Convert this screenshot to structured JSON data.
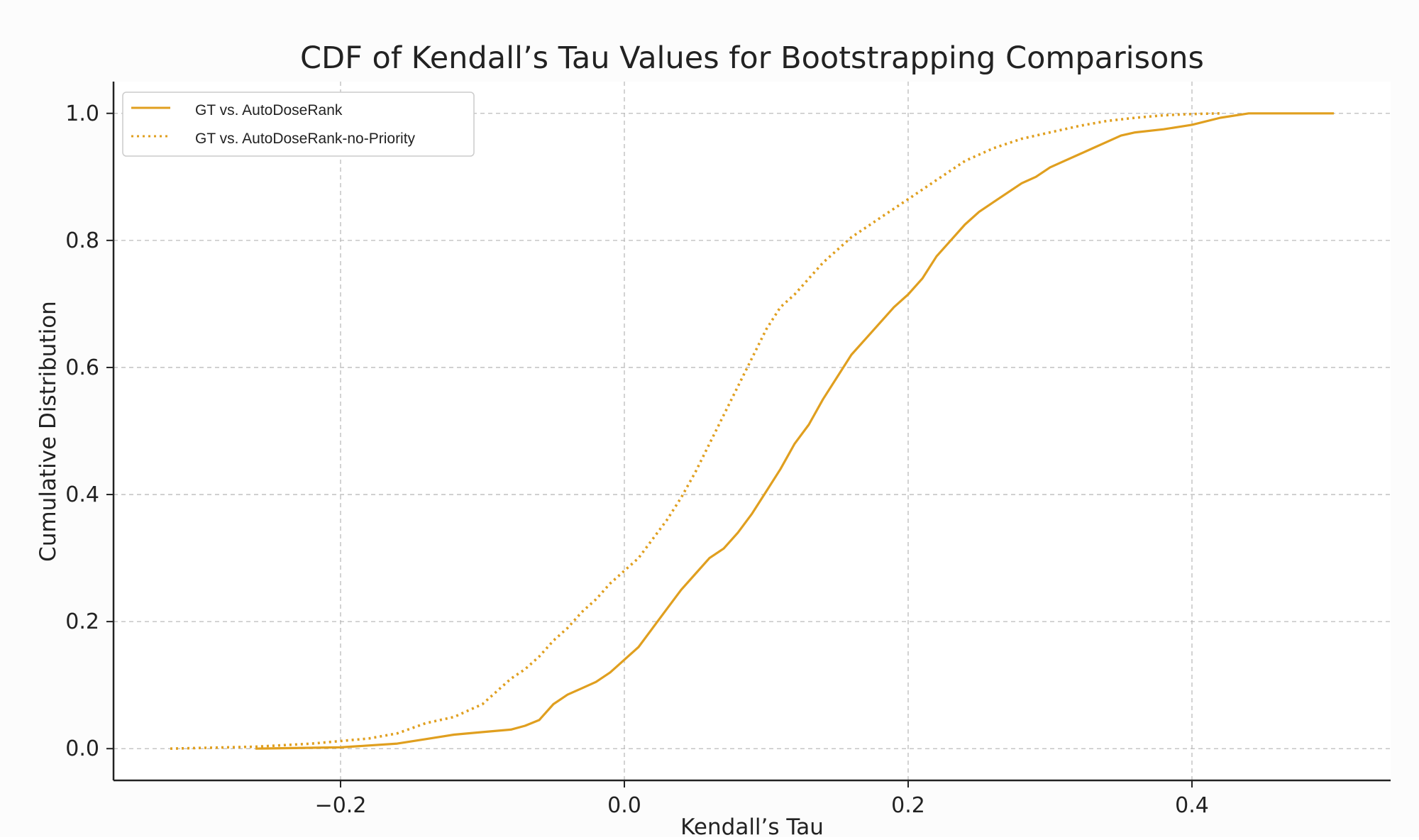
{
  "chart_data": {
    "type": "line",
    "title": "CDF of Kendall’s Tau Values for Bootstrapping Comparisons",
    "xlabel": "Kendall’s Tau",
    "ylabel": "Cumulative Distribution",
    "xlim": [
      -0.36,
      0.54
    ],
    "ylim": [
      -0.05,
      1.05
    ],
    "xticks": [
      -0.2,
      0.0,
      0.2,
      0.4
    ],
    "xtick_labels": [
      "−0.2",
      "0.0",
      "0.2",
      "0.4"
    ],
    "yticks": [
      0.0,
      0.2,
      0.4,
      0.6,
      0.8,
      1.0
    ],
    "ytick_labels": [
      "0.0",
      "0.2",
      "0.4",
      "0.6",
      "0.8",
      "1.0"
    ],
    "grid": true,
    "legend_position": "top-left",
    "colors": {
      "line": "#E09F1F",
      "grid": "#BBBBBB",
      "axis": "#222222",
      "plot_bg": "#FFFFFF",
      "page_bg": "#FCFCFC"
    },
    "series": [
      {
        "name": "GT vs. AutoDoseRank",
        "style": "solid",
        "x": [
          -0.26,
          -0.2,
          -0.16,
          -0.14,
          -0.12,
          -0.1,
          -0.08,
          -0.07,
          -0.06,
          -0.05,
          -0.04,
          -0.03,
          -0.02,
          -0.01,
          0.0,
          0.01,
          0.02,
          0.03,
          0.04,
          0.05,
          0.06,
          0.07,
          0.08,
          0.09,
          0.1,
          0.11,
          0.12,
          0.13,
          0.14,
          0.15,
          0.16,
          0.17,
          0.18,
          0.19,
          0.2,
          0.21,
          0.22,
          0.23,
          0.24,
          0.25,
          0.26,
          0.27,
          0.28,
          0.29,
          0.3,
          0.31,
          0.32,
          0.33,
          0.34,
          0.35,
          0.36,
          0.38,
          0.4,
          0.42,
          0.44,
          0.47,
          0.5
        ],
        "values": [
          0.0,
          0.002,
          0.008,
          0.015,
          0.022,
          0.026,
          0.03,
          0.036,
          0.045,
          0.07,
          0.085,
          0.095,
          0.105,
          0.12,
          0.14,
          0.16,
          0.19,
          0.22,
          0.25,
          0.275,
          0.3,
          0.315,
          0.34,
          0.37,
          0.405,
          0.44,
          0.48,
          0.51,
          0.55,
          0.585,
          0.62,
          0.645,
          0.67,
          0.695,
          0.715,
          0.74,
          0.775,
          0.8,
          0.825,
          0.845,
          0.86,
          0.875,
          0.89,
          0.9,
          0.915,
          0.925,
          0.935,
          0.945,
          0.955,
          0.965,
          0.97,
          0.975,
          0.982,
          0.993,
          1.0,
          1.0,
          1.0
        ]
      },
      {
        "name": "GT vs. AutoDoseRank-no-Priority",
        "style": "dotted",
        "x": [
          -0.32,
          -0.26,
          -0.22,
          -0.18,
          -0.16,
          -0.14,
          -0.12,
          -0.1,
          -0.09,
          -0.08,
          -0.07,
          -0.06,
          -0.05,
          -0.04,
          -0.03,
          -0.02,
          -0.01,
          0.0,
          0.01,
          0.02,
          0.03,
          0.04,
          0.05,
          0.06,
          0.07,
          0.08,
          0.09,
          0.1,
          0.11,
          0.12,
          0.13,
          0.14,
          0.15,
          0.16,
          0.17,
          0.18,
          0.19,
          0.2,
          0.22,
          0.24,
          0.26,
          0.28,
          0.3,
          0.32,
          0.34,
          0.36,
          0.38,
          0.4,
          0.42
        ],
        "values": [
          0.0,
          0.003,
          0.008,
          0.016,
          0.024,
          0.04,
          0.05,
          0.07,
          0.09,
          0.11,
          0.125,
          0.145,
          0.17,
          0.19,
          0.215,
          0.235,
          0.26,
          0.28,
          0.3,
          0.33,
          0.36,
          0.395,
          0.435,
          0.48,
          0.525,
          0.57,
          0.615,
          0.66,
          0.695,
          0.715,
          0.74,
          0.765,
          0.785,
          0.805,
          0.82,
          0.835,
          0.85,
          0.865,
          0.895,
          0.925,
          0.945,
          0.96,
          0.97,
          0.98,
          0.988,
          0.993,
          0.997,
          0.999,
          1.0
        ]
      }
    ]
  }
}
